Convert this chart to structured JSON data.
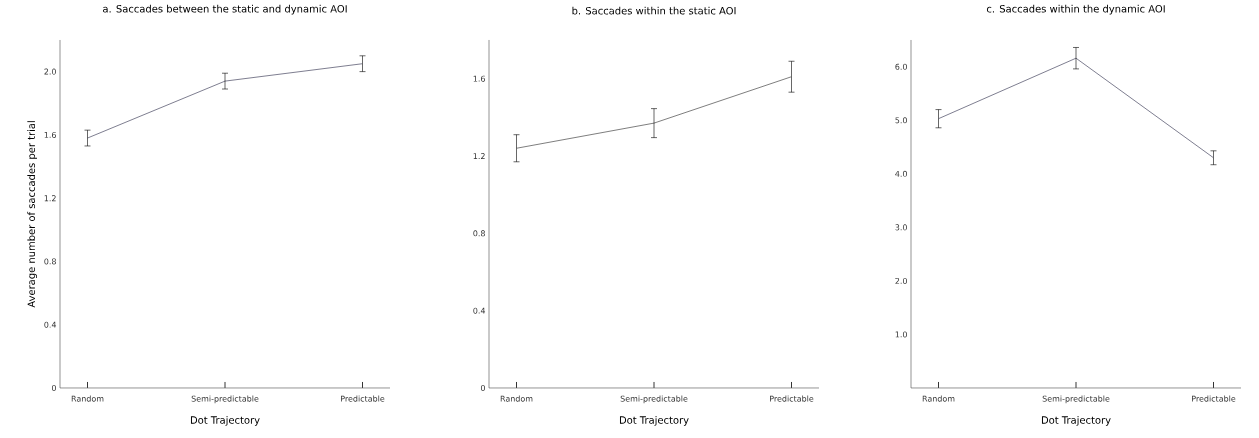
{
  "chart_data": [
    {
      "type": "line",
      "title": "a.  Saccades between the static and dynamic AOI",
      "xlabel": "Dot Trajectory",
      "ylabel": "Average number of saccades per trial",
      "categories": [
        "Random",
        "Semi-predictable",
        "Predictable"
      ],
      "values": [
        1.58,
        1.94,
        2.05
      ],
      "errors": [
        0.05,
        0.05,
        0.05
      ],
      "color": "#262645",
      "ylim": [
        0,
        2.2
      ],
      "yticks": [
        0,
        0.4,
        0.8,
        1.2,
        1.6,
        {
          "value": 2,
          "label": "2.0"
        }
      ]
    },
    {
      "type": "line",
      "title": "b. Saccades within the static AOI",
      "xlabel": "Dot Trajectory",
      "categories": [
        "Random",
        "Semi-predictable",
        "Predictable"
      ],
      "values": [
        1.24,
        1.37,
        1.61
      ],
      "errors": [
        0.07,
        0.075,
        0.08
      ],
      "color": "#262626",
      "ylim": [
        0,
        1.8
      ],
      "yticks": [
        0,
        0.4,
        0.8,
        1.2,
        1.6
      ]
    },
    {
      "type": "line",
      "title": "c. Saccades within the dynamic AOI",
      "xlabel": "Dot Trajectory",
      "categories": [
        "Random",
        "Semi-predictable",
        "Predictable"
      ],
      "values": [
        5.03,
        6.16,
        4.3
      ],
      "errors": [
        0.17,
        0.2,
        0.13
      ],
      "color": "#262645",
      "ylim": [
        0,
        6.5
      ],
      "yticks": [
        {
          "value": 1,
          "label": "1.0"
        },
        {
          "value": 2,
          "label": "2.0"
        },
        {
          "value": 3,
          "label": "3.0"
        },
        {
          "value": 4,
          "label": "4.0"
        },
        {
          "value": 5,
          "label": "5.0"
        },
        {
          "value": 6,
          "label": "6.0"
        }
      ]
    }
  ]
}
